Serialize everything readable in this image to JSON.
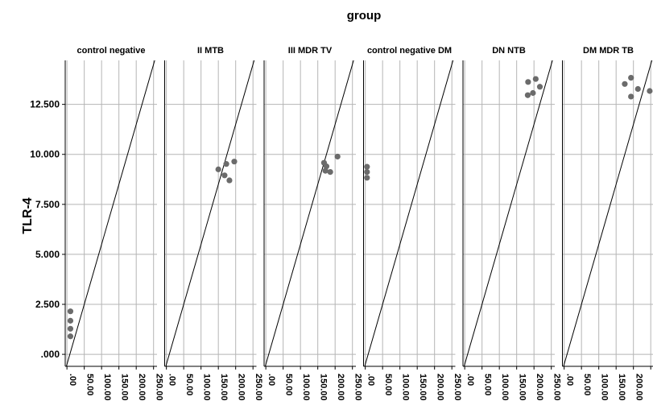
{
  "chart_data": {
    "type": "scatter",
    "title": "group",
    "ylabel": "TLR-4",
    "xlabel": "",
    "ylim": [
      -600,
      14700
    ],
    "xlim": [
      -5,
      260
    ],
    "y_ticks": [
      0,
      2500,
      5000,
      7500,
      10000,
      12500
    ],
    "y_tick_labels": [
      ".000",
      "2.500",
      "5.000",
      "7.500",
      "10.000",
      "12.500"
    ],
    "x_ticks": [
      0,
      50,
      100,
      150,
      200,
      250
    ],
    "x_tick_labels": [
      ".00",
      "50.00",
      "100.00",
      "150.00",
      "200.00",
      "250.00"
    ],
    "grid": true,
    "point_color": "#6b6b6b",
    "reference_line": {
      "type": "y=x (per-panel diagonal)",
      "color": "#000000"
    },
    "panels": [
      {
        "name": "control negative",
        "points": [
          {
            "x": 10,
            "y": 2150
          },
          {
            "x": 10,
            "y": 1680
          },
          {
            "x": 10,
            "y": 1280
          },
          {
            "x": 10,
            "y": 900
          }
        ]
      },
      {
        "name": "II MTB",
        "points": [
          {
            "x": 150,
            "y": 9250
          },
          {
            "x": 173,
            "y": 9520
          },
          {
            "x": 196,
            "y": 9640
          },
          {
            "x": 168,
            "y": 8950
          },
          {
            "x": 182,
            "y": 8700
          }
        ]
      },
      {
        "name": "III MDR TV",
        "points": [
          {
            "x": 168,
            "y": 9580
          },
          {
            "x": 175,
            "y": 9400
          },
          {
            "x": 207,
            "y": 9890
          },
          {
            "x": 172,
            "y": 9180
          },
          {
            "x": 186,
            "y": 9120
          }
        ]
      },
      {
        "name": "control negative DM",
        "points": [
          {
            "x": 5,
            "y": 9380
          },
          {
            "x": 5,
            "y": 9120
          },
          {
            "x": 5,
            "y": 8830
          }
        ]
      },
      {
        "name": "DN NTB",
        "points": [
          {
            "x": 183,
            "y": 13620
          },
          {
            "x": 205,
            "y": 13770
          },
          {
            "x": 217,
            "y": 13380
          },
          {
            "x": 182,
            "y": 12960
          },
          {
            "x": 197,
            "y": 13070
          }
        ]
      },
      {
        "name": "DM MDR TB",
        "points": [
          {
            "x": 175,
            "y": 13520
          },
          {
            "x": 193,
            "y": 13830
          },
          {
            "x": 213,
            "y": 13270
          },
          {
            "x": 193,
            "y": 12890
          },
          {
            "x": 247,
            "y": 13170
          }
        ]
      }
    ]
  }
}
